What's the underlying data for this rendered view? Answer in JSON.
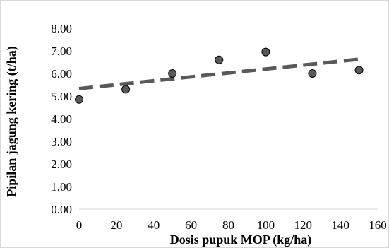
{
  "chart_data": {
    "type": "scatter",
    "title": "",
    "xlabel": "Dosis pupuk MOP (kg/ha)",
    "ylabel": "Pipilan jagung kering (t/ha)",
    "xlim": [
      0,
      160
    ],
    "ylim": [
      0,
      8
    ],
    "x_ticks": [
      "0",
      "20",
      "40",
      "60",
      "80",
      "100",
      "120",
      "140",
      "160"
    ],
    "y_ticks": [
      "0.00",
      "1.00",
      "2.00",
      "3.00",
      "4.00",
      "5.00",
      "6.00",
      "7.00",
      "8.00"
    ],
    "grid": false,
    "legend": "none",
    "series": [
      {
        "x": [
          0,
          25,
          50,
          75,
          100,
          125,
          150
        ],
        "y": [
          4.85,
          5.3,
          6.0,
          6.6,
          6.95,
          6.0,
          6.15
        ],
        "marker": "circle",
        "color": "#595959"
      }
    ],
    "trendline": {
      "style": "dashed",
      "color": "#595959",
      "x": [
        0,
        150
      ],
      "y": [
        5.33,
        6.63
      ]
    }
  }
}
